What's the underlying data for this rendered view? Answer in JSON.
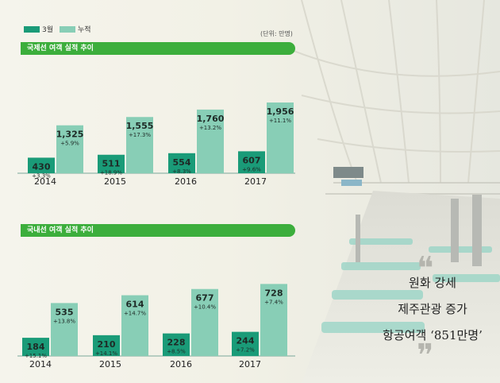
{
  "legend": {
    "monthly": "3월",
    "cumulative": "누적"
  },
  "unit": "(단위: 만명)",
  "caption": {
    "line1": "원화 강세",
    "line2": "제주관광 증가",
    "line3": "항공여객 ‘851만명’"
  },
  "colors": {
    "monthly": "#1a9b78",
    "cumulative": "#88ceb6",
    "band": "#3cae3c"
  },
  "chart_data": [
    {
      "type": "bar",
      "title": "국제선 여객 실적 추이",
      "categories": [
        "2014",
        "2015",
        "2016",
        "2017"
      ],
      "series": [
        {
          "name": "3월",
          "values": [
            430,
            511,
            554,
            607
          ],
          "growth": [
            "+3.3%",
            "+18.9%",
            "+8.3%",
            "+9.6%"
          ],
          "labels": [
            "430",
            "511",
            "554",
            "607"
          ]
        },
        {
          "name": "누적",
          "values": [
            1325,
            1555,
            1760,
            1956
          ],
          "growth": [
            "+5.9%",
            "+17.3%",
            "+13.2%",
            "+11.1%"
          ],
          "labels": [
            "1,325",
            "1,555",
            "1,760",
            "1,956"
          ]
        }
      ]
    },
    {
      "type": "bar",
      "title": "국내선 여객 실적 추이",
      "categories": [
        "2014",
        "2015",
        "2016",
        "2017"
      ],
      "series": [
        {
          "name": "3월",
          "values": [
            184,
            210,
            228,
            244
          ],
          "growth": [
            "+15.1%",
            "+14.1%",
            "+8.5%",
            "+7.2%"
          ],
          "labels": [
            "184",
            "210",
            "228",
            "244"
          ]
        },
        {
          "name": "누적",
          "values": [
            535,
            614,
            677,
            728
          ],
          "growth": [
            "+13.8%",
            "+14.7%",
            "+10.4%",
            "+7.4%"
          ],
          "labels": [
            "535",
            "614",
            "677",
            "728"
          ]
        }
      ]
    }
  ]
}
